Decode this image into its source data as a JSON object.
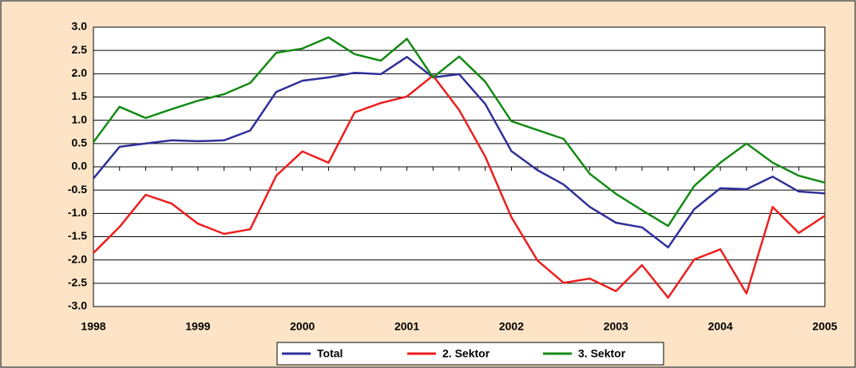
{
  "chart_data": {
    "type": "line",
    "categories": [
      "1998",
      null,
      null,
      null,
      "1999",
      null,
      null,
      null,
      "2000",
      null,
      null,
      null,
      "2001",
      null,
      null,
      null,
      "2002",
      null,
      null,
      null,
      "2003",
      null,
      null,
      null,
      "2004",
      null,
      null,
      null,
      "2005"
    ],
    "series": [
      {
        "name": "Total",
        "color": "#2e2e9a",
        "values": [
          -0.25,
          0.43,
          0.5,
          0.57,
          0.55,
          0.57,
          0.78,
          1.61,
          1.85,
          1.92,
          2.02,
          1.99,
          2.36,
          1.92,
          1.99,
          1.35,
          0.34,
          -0.07,
          -0.38,
          -0.86,
          -1.2,
          -1.3,
          -1.73,
          -0.91,
          -0.46,
          -0.48,
          -0.21,
          -0.53,
          -0.57
        ]
      },
      {
        "name": "2. Sektor",
        "color": "#ee1c1c",
        "values": [
          -1.85,
          -1.29,
          -0.6,
          -0.79,
          -1.22,
          -1.44,
          -1.34,
          -0.19,
          0.33,
          0.09,
          1.17,
          1.37,
          1.51,
          1.96,
          1.22,
          0.22,
          -1.08,
          -2.01,
          -2.49,
          -2.4,
          -2.67,
          -2.11,
          -2.81,
          -1.99,
          -1.77,
          -2.72,
          -0.86,
          -1.42,
          -1.05
        ]
      },
      {
        "name": "3. Sektor",
        "color": "#138a13",
        "values": [
          0.53,
          1.29,
          1.05,
          1.24,
          1.42,
          1.56,
          1.8,
          2.45,
          2.54,
          2.78,
          2.42,
          2.28,
          2.75,
          1.92,
          2.37,
          1.83,
          0.98,
          0.79,
          0.6,
          -0.15,
          -0.58,
          -0.93,
          -1.27,
          -0.41,
          0.09,
          0.5,
          0.09,
          -0.19,
          -0.34
        ]
      }
    ],
    "ylim": [
      -3,
      3
    ],
    "yticks": [
      {
        "value": -3,
        "label": "-3.0"
      },
      {
        "value": -2.5,
        "label": "-2.5"
      },
      {
        "value": -2,
        "label": "-2.0"
      },
      {
        "value": -1.5,
        "label": "-1.5"
      },
      {
        "value": -1,
        "label": "-1.0"
      },
      {
        "value": -0.5,
        "label": "-0.5"
      },
      {
        "value": 0,
        "label": "0.0"
      },
      {
        "value": 0.5,
        "label": "0.5"
      },
      {
        "value": 1,
        "label": "1.0"
      },
      {
        "value": 1.5,
        "label": "1.5"
      },
      {
        "value": 2,
        "label": "2.0"
      },
      {
        "value": 2.5,
        "label": "2.5"
      },
      {
        "value": 3,
        "label": "3.0"
      }
    ],
    "grid": true,
    "legend": "bottom"
  }
}
